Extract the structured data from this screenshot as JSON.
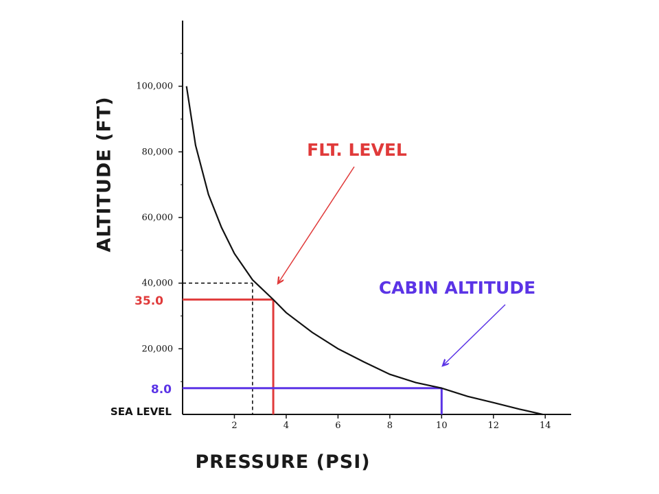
{
  "chart_data": {
    "type": "line",
    "xlabel": "PRESSURE (PSI)",
    "ylabel": "ALTITUDE (FT)",
    "xlim": [
      0,
      15
    ],
    "ylim": [
      0,
      120000
    ],
    "x_ticks": [
      2,
      4,
      6,
      8,
      10,
      12,
      14
    ],
    "y_ticks": [
      {
        "value": 20000,
        "label": "20,000"
      },
      {
        "value": 40000,
        "label": "40,000"
      },
      {
        "value": 60000,
        "label": "60,000"
      },
      {
        "value": 80000,
        "label": "80,000"
      },
      {
        "value": 100000,
        "label": "100,000"
      }
    ],
    "series": [
      {
        "x": [
          0.15,
          0.5,
          1.0,
          1.5,
          2.0,
          2.7,
          3.5,
          4.0,
          5.0,
          6.0,
          7.0,
          8.0,
          9.0,
          10.0,
          11.0,
          12.0,
          13.0,
          13.9
        ],
        "y": [
          100000,
          82000,
          67000,
          57000,
          49000,
          41000,
          35000,
          31000,
          25000,
          20000,
          16000,
          12200,
          9700,
          8000,
          5500,
          3600,
          1600,
          0
        ]
      }
    ],
    "reference_lines": [
      {
        "label": "40,000",
        "x": 2.7,
        "y": 40000,
        "style": "dashed",
        "color": "#000000"
      },
      {
        "label": "35.0",
        "x": 3.5,
        "y": 35000,
        "style": "solid",
        "color": "#e03a3a"
      },
      {
        "label": "8.0",
        "x": 10.0,
        "y": 8000,
        "style": "solid",
        "color": "#5b34e6"
      }
    ],
    "annotations": [
      {
        "text": "FLT. LEVEL",
        "color": "#e03a3a",
        "points_to": {
          "x": 3.5,
          "y": 35000
        }
      },
      {
        "text": "CABIN ALTITUDE",
        "color": "#5b34e6",
        "points_to": {
          "x": 10.0,
          "y": 8000
        }
      }
    ],
    "baseline_label": "SEA LEVEL",
    "marker_labels": {
      "flt_level": "35.0",
      "cabin": "8.0"
    },
    "grid": false,
    "legend": "none"
  }
}
